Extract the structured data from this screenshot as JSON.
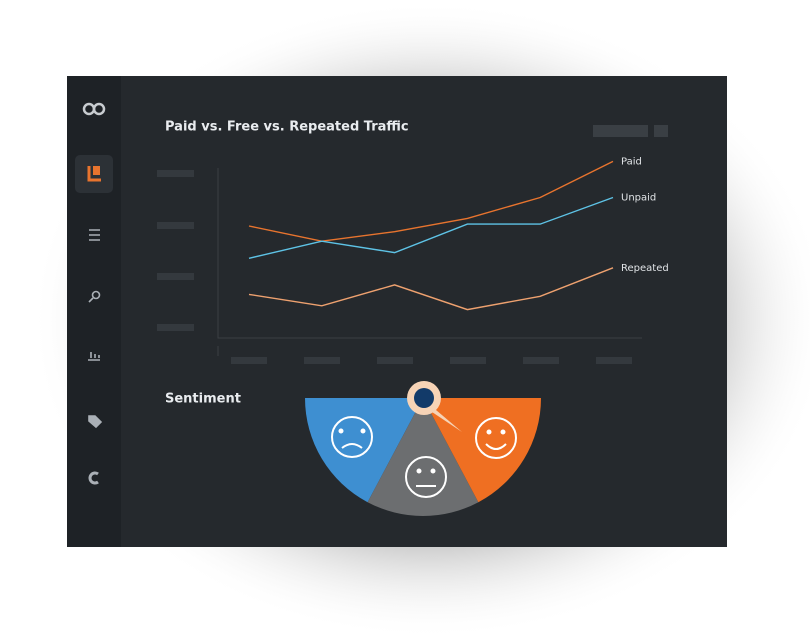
{
  "chart_data": {
    "type": "line",
    "title": "Paid vs. Free vs. Repeated Traffic",
    "categories": [
      null,
      null,
      null,
      null,
      null,
      null
    ],
    "ylim": [
      0,
      100
    ],
    "series": [
      {
        "name": "Paid",
        "color": "#e8742e",
        "values": [
          60,
          52,
          57,
          64,
          75,
          94
        ]
      },
      {
        "name": "Unpaid",
        "color": "#5ec3e6",
        "values": [
          43,
          52,
          46,
          61,
          61,
          75
        ]
      },
      {
        "name": "Repeated",
        "color": "#eea16f",
        "values": [
          24,
          18,
          29,
          16,
          23,
          38
        ]
      }
    ]
  },
  "sentiment": {
    "title": "Sentiment"
  }
}
